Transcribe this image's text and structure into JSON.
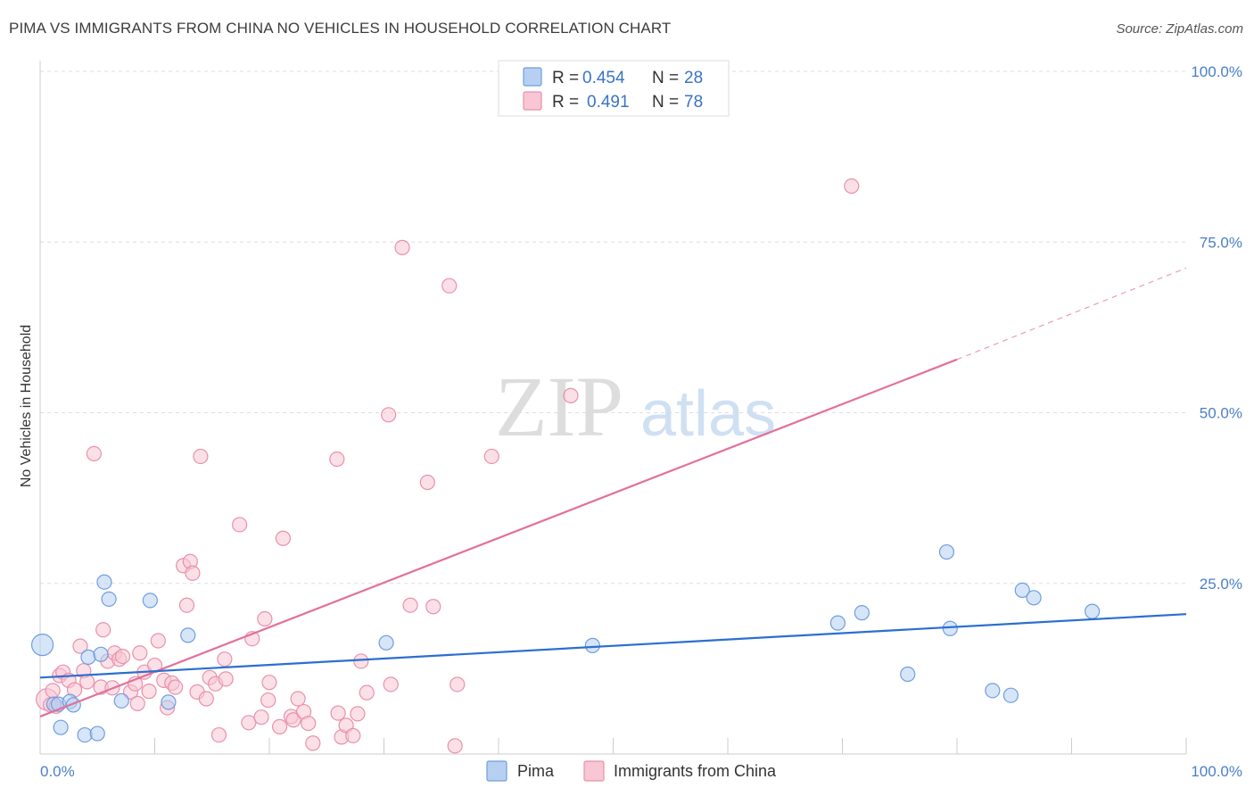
{
  "title": "PIMA VS IMMIGRANTS FROM CHINA NO VEHICLES IN HOUSEHOLD CORRELATION CHART",
  "source": "Source: ZipAtlas.com",
  "watermark": {
    "zip": "ZIP",
    "atlas": "atlas"
  },
  "legend": {
    "r_label": "R =",
    "n_label": "N =",
    "rows": [
      {
        "r": "0.454",
        "n": "28",
        "fill": "#b7d0f2",
        "stroke": "#6f9ede"
      },
      {
        "r": "0.491",
        "n": "78",
        "fill": "#f8c6d4",
        "stroke": "#e891ab"
      }
    ]
  },
  "bottom_legend": [
    "Pima",
    "Immigrants from China"
  ],
  "chart_data": {
    "type": "scatter",
    "title": "PIMA VS IMMIGRANTS FROM CHINA NO VEHICLES IN HOUSEHOLD CORRELATION CHART",
    "xlabel": "",
    "ylabel": "No Vehicles in Household",
    "xlim": [
      0,
      100
    ],
    "ylim": [
      0,
      100
    ],
    "x_ticks": [
      "0.0%",
      "100.0%"
    ],
    "y_ticks": [
      {
        "value": 25,
        "label": "25.0%"
      },
      {
        "value": 50,
        "label": "50.0%"
      },
      {
        "value": 75,
        "label": "75.0%"
      },
      {
        "value": 100,
        "label": "100.0%"
      }
    ],
    "grid": true,
    "legend_position": "top-center",
    "series": [
      {
        "name": "Pima",
        "color": "#6f9ede",
        "fill": "#b7d0f2",
        "r": 0.454,
        "n": 28,
        "trend": {
          "x0": 0,
          "y0": 11.2,
          "x1": 100,
          "y1": 20.5,
          "color": "#2b6fd0"
        },
        "points": [
          {
            "x": 0.2,
            "y": 16.0,
            "big": true
          },
          {
            "x": 1.2,
            "y": 7.3
          },
          {
            "x": 1.6,
            "y": 7.3
          },
          {
            "x": 1.8,
            "y": 3.9
          },
          {
            "x": 2.6,
            "y": 7.7
          },
          {
            "x": 2.9,
            "y": 7.2
          },
          {
            "x": 3.9,
            "y": 2.8
          },
          {
            "x": 4.2,
            "y": 14.2
          },
          {
            "x": 5.3,
            "y": 14.6
          },
          {
            "x": 5.0,
            "y": 3.0
          },
          {
            "x": 5.6,
            "y": 25.2
          },
          {
            "x": 6.0,
            "y": 22.7
          },
          {
            "x": 7.1,
            "y": 7.8
          },
          {
            "x": 9.6,
            "y": 22.5
          },
          {
            "x": 11.2,
            "y": 7.6
          },
          {
            "x": 12.9,
            "y": 17.4
          },
          {
            "x": 30.2,
            "y": 16.3
          },
          {
            "x": 48.2,
            "y": 15.9
          },
          {
            "x": 69.6,
            "y": 19.2
          },
          {
            "x": 71.7,
            "y": 20.7
          },
          {
            "x": 75.7,
            "y": 11.7
          },
          {
            "x": 79.1,
            "y": 29.6
          },
          {
            "x": 79.4,
            "y": 18.4
          },
          {
            "x": 83.1,
            "y": 9.3
          },
          {
            "x": 84.7,
            "y": 8.6
          },
          {
            "x": 85.7,
            "y": 24.0
          },
          {
            "x": 86.7,
            "y": 22.9
          },
          {
            "x": 91.8,
            "y": 20.9
          }
        ]
      },
      {
        "name": "Immigrants from China",
        "color": "#e891ab",
        "fill": "#f8c6d4",
        "r": 0.491,
        "n": 78,
        "trend": {
          "x0": 0,
          "y0": 5.5,
          "x1": 80,
          "y1": 57.8,
          "dash_x1": 100,
          "dash_y1": 71.2,
          "color": "#e3709a"
        },
        "points": [
          {
            "x": 0.6,
            "y": 8.0,
            "big": true
          },
          {
            "x": 0.9,
            "y": 7.2
          },
          {
            "x": 1.1,
            "y": 9.3
          },
          {
            "x": 1.4,
            "y": 7.0
          },
          {
            "x": 1.7,
            "y": 11.5
          },
          {
            "x": 2.0,
            "y": 12.0
          },
          {
            "x": 2.5,
            "y": 10.8
          },
          {
            "x": 3.0,
            "y": 9.4
          },
          {
            "x": 3.5,
            "y": 15.8
          },
          {
            "x": 3.8,
            "y": 12.2
          },
          {
            "x": 4.1,
            "y": 10.6
          },
          {
            "x": 4.7,
            "y": 44.0
          },
          {
            "x": 5.3,
            "y": 9.8
          },
          {
            "x": 5.5,
            "y": 18.2
          },
          {
            "x": 5.9,
            "y": 13.6
          },
          {
            "x": 6.3,
            "y": 9.7
          },
          {
            "x": 6.5,
            "y": 14.8
          },
          {
            "x": 6.9,
            "y": 13.9
          },
          {
            "x": 7.2,
            "y": 14.3
          },
          {
            "x": 7.9,
            "y": 9.1
          },
          {
            "x": 8.3,
            "y": 10.3
          },
          {
            "x": 8.5,
            "y": 7.4
          },
          {
            "x": 8.7,
            "y": 14.8
          },
          {
            "x": 9.1,
            "y": 12.0
          },
          {
            "x": 9.5,
            "y": 9.2
          },
          {
            "x": 10.0,
            "y": 13.0
          },
          {
            "x": 10.3,
            "y": 16.6
          },
          {
            "x": 10.8,
            "y": 10.8
          },
          {
            "x": 11.1,
            "y": 6.8
          },
          {
            "x": 11.5,
            "y": 10.4
          },
          {
            "x": 11.8,
            "y": 9.8
          },
          {
            "x": 12.5,
            "y": 27.6
          },
          {
            "x": 12.8,
            "y": 21.8
          },
          {
            "x": 13.1,
            "y": 28.2
          },
          {
            "x": 13.3,
            "y": 26.5
          },
          {
            "x": 13.7,
            "y": 9.1
          },
          {
            "x": 14.0,
            "y": 43.6
          },
          {
            "x": 14.5,
            "y": 8.1
          },
          {
            "x": 14.8,
            "y": 11.2
          },
          {
            "x": 15.3,
            "y": 10.3
          },
          {
            "x": 15.6,
            "y": 2.8
          },
          {
            "x": 16.1,
            "y": 13.9
          },
          {
            "x": 16.2,
            "y": 11.0
          },
          {
            "x": 17.4,
            "y": 33.6
          },
          {
            "x": 18.2,
            "y": 4.6
          },
          {
            "x": 18.5,
            "y": 16.9
          },
          {
            "x": 19.3,
            "y": 5.4
          },
          {
            "x": 19.6,
            "y": 19.8
          },
          {
            "x": 19.9,
            "y": 7.9
          },
          {
            "x": 20.0,
            "y": 10.5
          },
          {
            "x": 20.9,
            "y": 4.0
          },
          {
            "x": 21.2,
            "y": 31.6
          },
          {
            "x": 21.9,
            "y": 5.5
          },
          {
            "x": 22.1,
            "y": 5.0
          },
          {
            "x": 22.5,
            "y": 8.1
          },
          {
            "x": 23.0,
            "y": 6.2
          },
          {
            "x": 23.4,
            "y": 4.5
          },
          {
            "x": 23.8,
            "y": 1.6
          },
          {
            "x": 25.9,
            "y": 43.2
          },
          {
            "x": 26.0,
            "y": 6.0
          },
          {
            "x": 26.3,
            "y": 2.5
          },
          {
            "x": 26.7,
            "y": 4.2
          },
          {
            "x": 27.3,
            "y": 2.7
          },
          {
            "x": 27.7,
            "y": 5.9
          },
          {
            "x": 28.0,
            "y": 13.6
          },
          {
            "x": 28.5,
            "y": 9.0
          },
          {
            "x": 30.4,
            "y": 49.7
          },
          {
            "x": 30.6,
            "y": 10.2
          },
          {
            "x": 31.6,
            "y": 74.2
          },
          {
            "x": 32.3,
            "y": 21.8
          },
          {
            "x": 33.8,
            "y": 39.8
          },
          {
            "x": 34.3,
            "y": 21.6
          },
          {
            "x": 35.7,
            "y": 68.6
          },
          {
            "x": 36.2,
            "y": 1.2
          },
          {
            "x": 36.4,
            "y": 10.2
          },
          {
            "x": 39.4,
            "y": 43.6
          },
          {
            "x": 46.3,
            "y": 52.5
          },
          {
            "x": 70.8,
            "y": 83.2
          }
        ]
      }
    ]
  }
}
